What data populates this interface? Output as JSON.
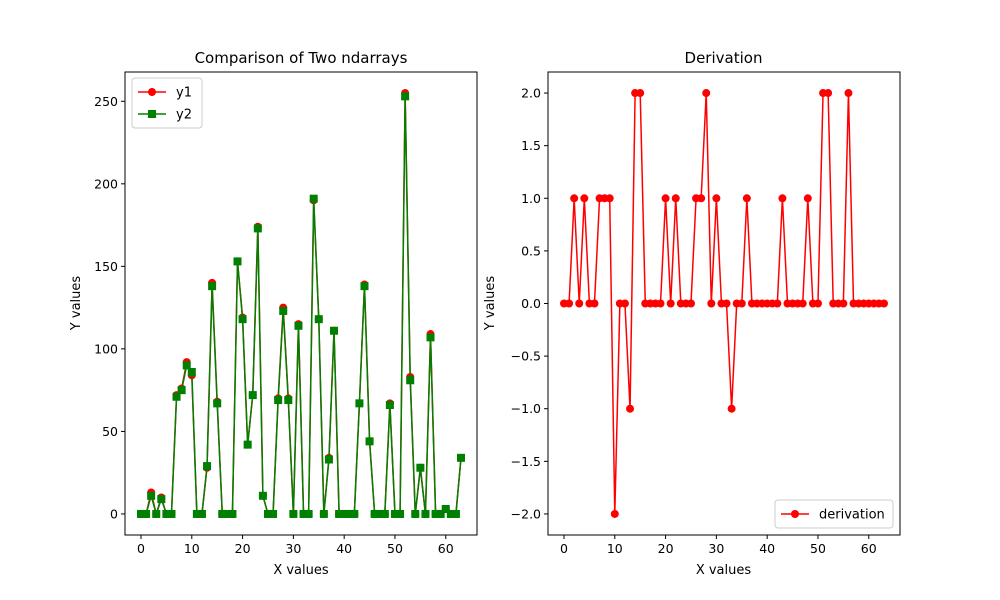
{
  "chart_data": [
    {
      "type": "line",
      "title": "Comparison of Two ndarrays",
      "xlabel": "X values",
      "ylabel": "Y values",
      "xlim": [
        -3.15,
        66.15
      ],
      "ylim": [
        -12.75,
        267.75
      ],
      "xticks": [
        0,
        10,
        20,
        30,
        40,
        50,
        60
      ],
      "yticks": [
        0,
        50,
        100,
        150,
        200,
        250
      ],
      "grid": false,
      "legend_position": "upper left",
      "series": [
        {
          "name": "y1",
          "color": "#ff0000",
          "marker": "circle",
          "x": [
            0,
            1,
            2,
            3,
            4,
            5,
            6,
            7,
            8,
            9,
            10,
            11,
            12,
            13,
            14,
            15,
            16,
            17,
            18,
            19,
            20,
            21,
            22,
            23,
            24,
            25,
            26,
            27,
            28,
            29,
            30,
            31,
            32,
            33,
            34,
            35,
            36,
            37,
            38,
            39,
            40,
            41,
            42,
            43,
            44,
            45,
            46,
            47,
            48,
            49,
            50,
            51,
            52,
            53,
            54,
            55,
            56,
            57,
            58,
            59,
            60,
            61,
            62,
            63
          ],
          "values": [
            0,
            0,
            13,
            0,
            10,
            0,
            0,
            72,
            76,
            92,
            84,
            0,
            0,
            28,
            140,
            68,
            0,
            0,
            0,
            153,
            119,
            42,
            72,
            174,
            11,
            0,
            0,
            70,
            125,
            70,
            0,
            115,
            0,
            0,
            190,
            118,
            0,
            34,
            111,
            0,
            0,
            0,
            0,
            67,
            139,
            44,
            0,
            0,
            0,
            67,
            0,
            0,
            255,
            83,
            0,
            28,
            0,
            109,
            0,
            0,
            3,
            0,
            0,
            34
          ]
        },
        {
          "name": "y2",
          "color": "#008000",
          "marker": "square",
          "x": [
            0,
            1,
            2,
            3,
            4,
            5,
            6,
            7,
            8,
            9,
            10,
            11,
            12,
            13,
            14,
            15,
            16,
            17,
            18,
            19,
            20,
            21,
            22,
            23,
            24,
            25,
            26,
            27,
            28,
            29,
            30,
            31,
            32,
            33,
            34,
            35,
            36,
            37,
            38,
            39,
            40,
            41,
            42,
            43,
            44,
            45,
            46,
            47,
            48,
            49,
            50,
            51,
            52,
            53,
            54,
            55,
            56,
            57,
            58,
            59,
            60,
            61,
            62,
            63
          ],
          "values": [
            0,
            0,
            11,
            0,
            9,
            0,
            0,
            71,
            75,
            90,
            86,
            0,
            0,
            29,
            138,
            67,
            0,
            0,
            0,
            153,
            118,
            42,
            72,
            173,
            11,
            0,
            0,
            69,
            123,
            69,
            0,
            114,
            0,
            0,
            191,
            118,
            0,
            33,
            111,
            0,
            0,
            0,
            0,
            67,
            138,
            44,
            0,
            0,
            0,
            66,
            0,
            0,
            253,
            81,
            0,
            28,
            0,
            107,
            0,
            0,
            3,
            0,
            0,
            34
          ]
        }
      ]
    },
    {
      "type": "line",
      "title": "Derivation",
      "xlabel": "X values",
      "ylabel": "Y values",
      "xlim": [
        -3.15,
        66.15
      ],
      "ylim": [
        -2.2,
        2.2
      ],
      "xticks": [
        0,
        10,
        20,
        30,
        40,
        50,
        60
      ],
      "yticks": [
        -2.0,
        -1.5,
        -1.0,
        -0.5,
        0.0,
        0.5,
        1.0,
        1.5,
        2.0
      ],
      "ytick_labels": [
        "−2.0",
        "−1.5",
        "−1.0",
        "−0.5",
        "0.0",
        "0.5",
        "1.0",
        "1.5",
        "2.0"
      ],
      "grid": false,
      "legend_position": "lower right",
      "series": [
        {
          "name": "derivation",
          "color": "#ff0000",
          "marker": "circle",
          "x": [
            0,
            1,
            2,
            3,
            4,
            5,
            6,
            7,
            8,
            9,
            10,
            11,
            12,
            13,
            14,
            15,
            16,
            17,
            18,
            19,
            20,
            21,
            22,
            23,
            24,
            25,
            26,
            27,
            28,
            29,
            30,
            31,
            32,
            33,
            34,
            35,
            36,
            37,
            38,
            39,
            40,
            41,
            42,
            43,
            44,
            45,
            46,
            47,
            48,
            49,
            50,
            51,
            52,
            53,
            54,
            55,
            56,
            57,
            58,
            59,
            60,
            61,
            62,
            63
          ],
          "values": [
            0,
            0,
            1,
            0,
            1,
            0,
            0,
            1,
            1,
            1,
            -2,
            0,
            0,
            -1,
            2,
            2,
            0,
            0,
            0,
            0,
            1,
            0,
            1,
            0,
            0,
            0,
            1,
            1,
            2,
            0,
            1,
            0,
            0,
            -1,
            0,
            0,
            1,
            0,
            0,
            0,
            0,
            0,
            0,
            1,
            0,
            0,
            0,
            0,
            1,
            0,
            0,
            2,
            2,
            0,
            0,
            0,
            2,
            0,
            0,
            0,
            0,
            0,
            0,
            0
          ]
        }
      ]
    }
  ]
}
